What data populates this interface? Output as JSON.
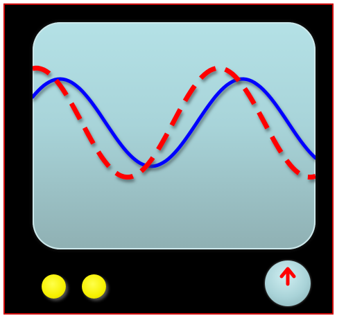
{
  "colors": {
    "frame_border": "#d00000",
    "monitor": "#000000",
    "screen_top": "#b4e1e6",
    "screen_bottom": "#8fb0b3",
    "solid_wave": "#0000ff",
    "dashed_wave": "#ff0000",
    "indicator": "#f6f000",
    "knob": "#a9d3d8",
    "knob_arrow": "#ff0000"
  },
  "icons": {
    "indicator_light": "circle",
    "knob_pointer": "arrow-up-icon"
  },
  "waves": [
    {
      "name": "",
      "style": "solid",
      "amplitude": 1.0,
      "phase": 0.0
    },
    {
      "name": "",
      "style": "dashed",
      "amplitude": 1.25,
      "phase": 0.15
    }
  ]
}
